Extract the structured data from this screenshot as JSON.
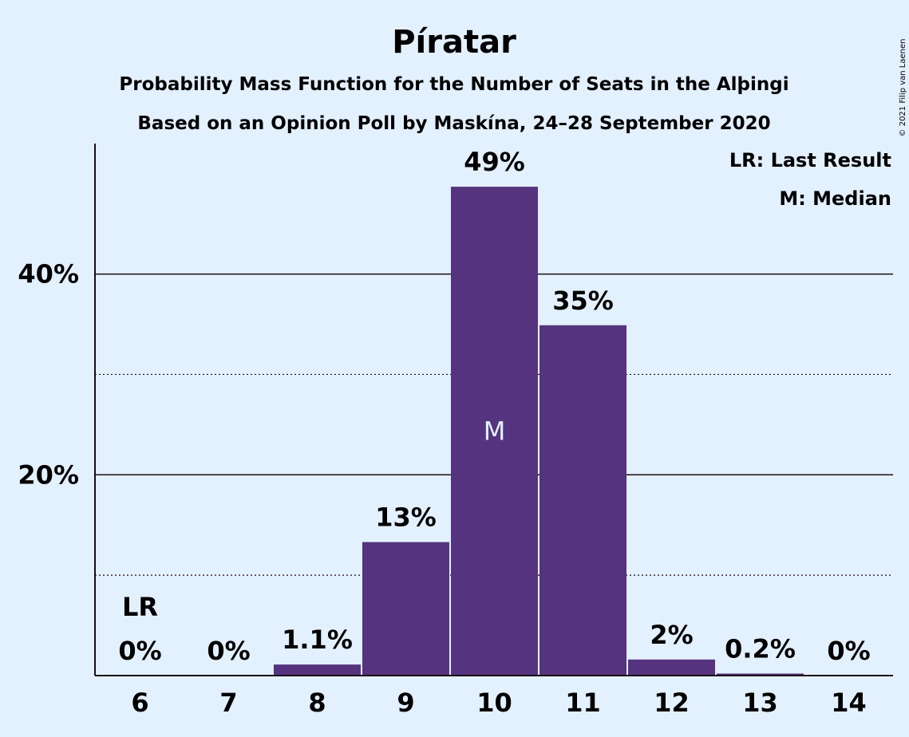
{
  "chart_data": {
    "type": "bar",
    "title": "Píratar",
    "subtitle_lines": [
      "Probability Mass Function for the Number of Seats in the Alþingi",
      "Based on an Opinion Poll by Maskína, 24–28 September 2020"
    ],
    "categories": [
      "6",
      "7",
      "8",
      "9",
      "10",
      "11",
      "12",
      "13",
      "14"
    ],
    "values": [
      0,
      0,
      1.1,
      13.3,
      48.7,
      34.9,
      1.6,
      0.2,
      0
    ],
    "data_labels": [
      "0%",
      "0%",
      "1.1%",
      "13%",
      "49%",
      "35%",
      "2%",
      "0.2%",
      "0%"
    ],
    "ylim": [
      0,
      53
    ],
    "yticks_major": [
      20,
      40
    ],
    "ytick_labels": [
      "20%",
      "40%"
    ],
    "yticks_minor": [
      10,
      30
    ],
    "grid": true,
    "last_result": {
      "category": "6",
      "label": "LR"
    },
    "median": {
      "category": "10",
      "label": "M"
    },
    "legend": {
      "placement": "top-right",
      "items": [
        "LR: Last Result",
        "M: Median"
      ]
    },
    "bar_color": "#55337e",
    "background_color": "#e3f0fd",
    "copyright": "© 2021 Filip van Laenen"
  }
}
